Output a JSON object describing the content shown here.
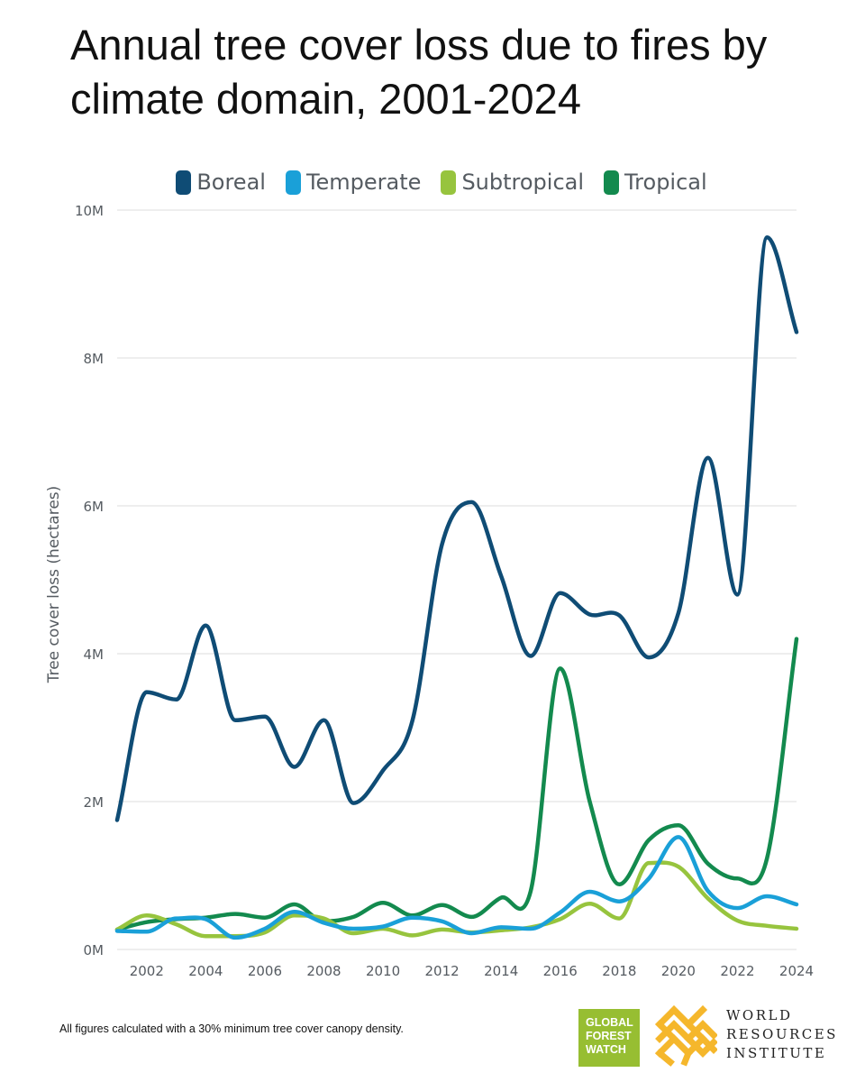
{
  "title": "Annual tree cover loss due to fires by climate domain, 2001-2024",
  "footnote": "All figures calculated with a 30% minimum tree cover canopy density.",
  "logos": {
    "gfw_lines": [
      "GLOBAL",
      "FOREST",
      "WATCH"
    ],
    "wri_lines": [
      "WORLD",
      "RESOURCES",
      "INSTITUTE"
    ]
  },
  "colors": {
    "boreal": "#0f4c75",
    "temperate": "#1aa0d8",
    "subtropical": "#97c43e",
    "tropical": "#138a4e",
    "grid": "#e8e8e8",
    "axis_text": "#555b61"
  },
  "chart_data": {
    "type": "line",
    "title": "Annual tree cover loss due to fires by climate domain, 2001-2024",
    "xlabel": "",
    "ylabel": "Tree cover loss (hectares)",
    "x": [
      2001,
      2002,
      2003,
      2004,
      2005,
      2006,
      2007,
      2008,
      2009,
      2010,
      2011,
      2012,
      2013,
      2014,
      2015,
      2016,
      2017,
      2018,
      2019,
      2020,
      2021,
      2022,
      2023,
      2024
    ],
    "xticks": [
      2002,
      2004,
      2006,
      2008,
      2010,
      2012,
      2014,
      2016,
      2018,
      2020,
      2022,
      2024
    ],
    "xtick_labels": [
      "2002",
      "2004",
      "2006",
      "2008",
      "2010",
      "2012",
      "2014",
      "2016",
      "2018",
      "2020",
      "2022",
      "2024"
    ],
    "ylim": [
      0,
      10000000
    ],
    "yticks": [
      0,
      2000000,
      4000000,
      6000000,
      8000000,
      10000000
    ],
    "ytick_labels": [
      "0M",
      "2M",
      "4M",
      "6M",
      "8M",
      "10M"
    ],
    "grid": true,
    "legend_position": "top-center",
    "series": [
      {
        "name": "Boreal",
        "color": "#0f4c75",
        "values": [
          1750000,
          3480000,
          3380000,
          4380000,
          3100000,
          3150000,
          2470000,
          3100000,
          1980000,
          2420000,
          3100000,
          5480000,
          6050000,
          5050000,
          3970000,
          4820000,
          4530000,
          4520000,
          3950000,
          4550000,
          6650000,
          4800000,
          9630000,
          8350000
        ]
      },
      {
        "name": "Temperate",
        "color": "#1aa0d8",
        "values": [
          250000,
          240000,
          420000,
          410000,
          160000,
          280000,
          510000,
          360000,
          280000,
          310000,
          430000,
          380000,
          220000,
          300000,
          280000,
          500000,
          780000,
          650000,
          960000,
          1520000,
          790000,
          560000,
          720000,
          610000
        ]
      },
      {
        "name": "Subtropical",
        "color": "#97c43e",
        "values": [
          270000,
          460000,
          340000,
          180000,
          180000,
          230000,
          460000,
          420000,
          220000,
          280000,
          190000,
          270000,
          230000,
          260000,
          300000,
          410000,
          620000,
          420000,
          1170000,
          1120000,
          690000,
          390000,
          320000,
          280000
        ]
      },
      {
        "name": "Tropical",
        "color": "#138a4e",
        "values": [
          270000,
          370000,
          410000,
          430000,
          480000,
          430000,
          610000,
          380000,
          440000,
          630000,
          460000,
          600000,
          440000,
          700000,
          790000,
          3800000,
          2000000,
          880000,
          1480000,
          1680000,
          1160000,
          960000,
          1230000,
          4200000
        ]
      }
    ]
  }
}
